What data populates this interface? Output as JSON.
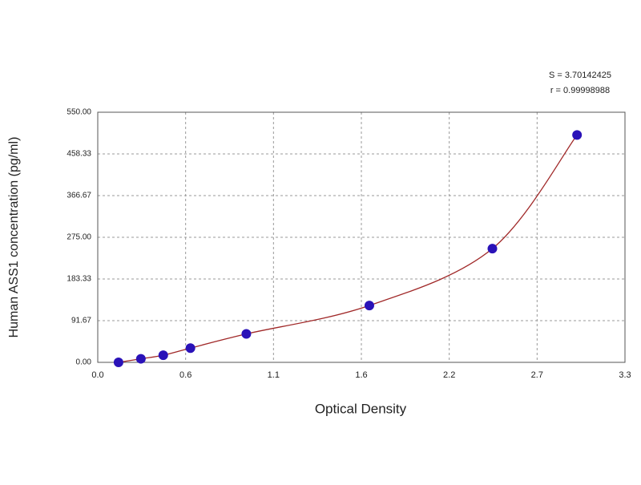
{
  "chart_data": {
    "type": "scatter",
    "xlabel": "Optical Density",
    "ylabel": "Human ASS1 concentration (pg/ml)",
    "annotations": [
      "S = 3.70142425",
      "r = 0.99998988"
    ],
    "x": [
      0.13,
      0.27,
      0.41,
      0.58,
      0.93,
      1.7,
      2.47,
      3.0
    ],
    "values": [
      0,
      7.81,
      15.63,
      31.25,
      62.5,
      125,
      250,
      500
    ],
    "color": "#2a12b8",
    "fit_color": "#a02828",
    "xlim": [
      0,
      3.3
    ],
    "ylim": [
      0,
      550
    ],
    "xticks": [
      {
        "value": 0,
        "label": "0.0"
      },
      {
        "value": 0.55,
        "label": "0.6"
      },
      1.1,
      {
        "value": 1.65,
        "label": "1.6"
      },
      2.2,
      {
        "value": 2.75,
        "label": "2.7"
      },
      3.3
    ],
    "yticks": [
      {
        "value": 0,
        "label": "0.00"
      },
      91.67,
      183.33,
      {
        "value": 275,
        "label": "275.00"
      },
      366.67,
      458.33,
      {
        "value": 550,
        "label": "550.00"
      }
    ],
    "grid": true
  }
}
